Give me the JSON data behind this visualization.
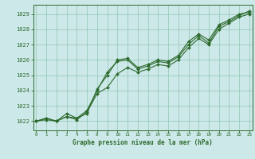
{
  "title": "Graphe pression niveau de la mer (hPa)",
  "bg_color": "#cce8e8",
  "grid_color": "#99ccbb",
  "line_color": "#2d6a2d",
  "x_ticks": [
    0,
    1,
    2,
    3,
    4,
    5,
    8,
    9,
    10,
    11,
    12,
    13,
    14,
    15,
    16,
    17,
    18,
    19,
    20,
    21,
    22,
    23
  ],
  "ylim": [
    1021.4,
    1029.6
  ],
  "yticks": [
    1022,
    1023,
    1024,
    1025,
    1026,
    1027,
    1028,
    1029
  ],
  "series1_x": [
    0,
    1,
    2,
    3,
    4,
    5,
    8,
    9,
    10,
    11,
    12,
    13,
    14,
    15,
    16,
    17,
    18,
    19,
    20,
    21,
    22,
    23
  ],
  "series1_y": [
    1022.0,
    1022.2,
    1022.0,
    1022.3,
    1022.2,
    1022.5,
    1024.1,
    1025.0,
    1026.0,
    1026.1,
    1025.5,
    1025.7,
    1026.0,
    1025.9,
    1026.3,
    1027.2,
    1027.7,
    1027.3,
    1028.3,
    1028.6,
    1029.0,
    1029.1
  ],
  "series2_x": [
    0,
    1,
    2,
    3,
    4,
    5,
    8,
    9,
    10,
    11,
    12,
    13,
    14,
    15,
    16,
    17,
    18,
    19,
    20,
    21,
    22,
    23
  ],
  "series2_y": [
    1022.0,
    1022.2,
    1022.0,
    1022.5,
    1022.2,
    1022.7,
    1024.0,
    1025.2,
    1025.9,
    1026.0,
    1025.4,
    1025.6,
    1025.9,
    1025.8,
    1026.2,
    1027.0,
    1027.6,
    1027.1,
    1028.2,
    1028.5,
    1028.9,
    1029.2
  ],
  "series3_x": [
    0,
    1,
    2,
    3,
    4,
    5,
    8,
    9,
    10,
    11,
    12,
    13,
    14,
    15,
    16,
    17,
    18,
    19,
    20,
    21,
    22,
    23
  ],
  "series3_y": [
    1022.0,
    1022.1,
    1022.0,
    1022.3,
    1022.1,
    1022.6,
    1023.8,
    1024.2,
    1025.1,
    1025.5,
    1025.2,
    1025.4,
    1025.7,
    1025.6,
    1026.0,
    1026.8,
    1027.4,
    1027.0,
    1028.0,
    1028.4,
    1028.8,
    1029.0
  ]
}
